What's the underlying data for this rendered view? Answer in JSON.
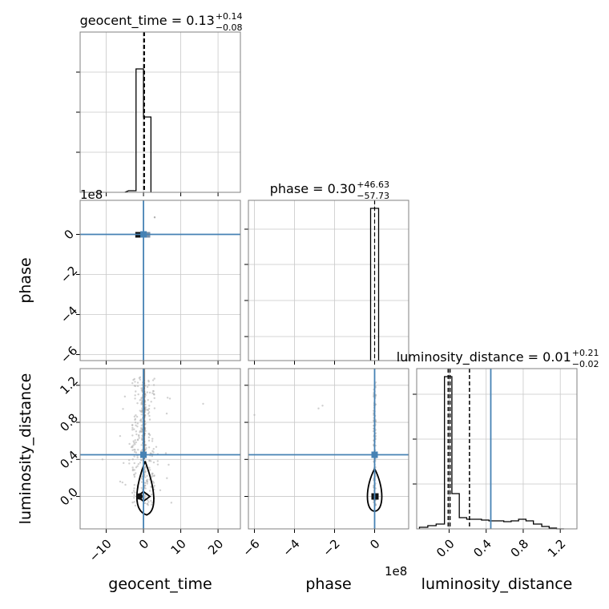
{
  "chart_data": {
    "type": "corner",
    "parameters": [
      "geocent_time",
      "phase",
      "luminosity_distance"
    ],
    "axis_labels": {
      "x": [
        "geocent_time",
        "phase",
        "luminosity_distance"
      ],
      "y": [
        "phase",
        "luminosity_distance"
      ]
    },
    "offset_text": {
      "panel_1_0_y": "1e8",
      "panel_2_1_x": "1e8"
    },
    "titles": [
      {
        "param": "geocent_time",
        "value": "0.13",
        "plus": "+0.14",
        "minus": "−0.08"
      },
      {
        "param": "phase",
        "value": "0.30",
        "plus": "+46.63",
        "minus": "−57.73"
      },
      {
        "param": "luminosity_distance",
        "value": "0.01",
        "plus": "+0.21",
        "minus": "−0.02"
      }
    ],
    "truths": {
      "geocent_time": 0.0,
      "phase": 0.0,
      "luminosity_distance": 0.45
    },
    "truth_color": "#4682b4",
    "axis_ranges": {
      "geocent_time": [
        -17,
        26
      ],
      "phase_scaled_1e8": [
        -6.3,
        1.7
      ],
      "luminosity_distance": [
        -0.35,
        1.38
      ]
    },
    "ticks": {
      "geocent_time": [
        "−10",
        "0",
        "10",
        "20"
      ],
      "phase_scaled_1e8": [
        "−6",
        "−4",
        "−2",
        "0"
      ],
      "luminosity_distance": [
        "0.0",
        "0.4",
        "0.8",
        "1.2"
      ]
    },
    "tick_values": {
      "geocent_time": [
        -10,
        0,
        10,
        20
      ],
      "phase_scaled_1e8": [
        -6,
        -4,
        -2,
        0
      ],
      "luminosity_distance": [
        0.0,
        0.4,
        0.8,
        1.2
      ]
    },
    "histograms": {
      "geocent_time": {
        "bins": [
          -4,
          -2,
          0,
          2
        ],
        "heights": [
          0.01,
          0.77,
          0.47,
          0.0
        ]
      },
      "phase_scaled_1e8": {
        "bins": [
          -0.2,
          0.0,
          0.2
        ],
        "heights": [
          0.95,
          0.0
        ]
      },
      "luminosity_distance": {
        "edges": [
          -0.32,
          -0.23,
          -0.14,
          -0.05,
          0.03,
          0.11,
          0.19,
          0.27,
          0.35,
          0.43,
          0.51,
          0.59,
          0.67,
          0.75,
          0.83,
          0.91,
          1.0,
          1.08,
          1.16,
          1.24
        ],
        "heights": [
          0.01,
          0.02,
          0.03,
          0.95,
          0.22,
          0.07,
          0.06,
          0.06,
          0.055,
          0.05,
          0.05,
          0.045,
          0.05,
          0.06,
          0.05,
          0.03,
          0.015,
          0.005,
          0.0
        ]
      }
    },
    "quantile_lines": {
      "geocent_time": [
        0.05,
        0.13,
        0.27
      ],
      "phase_scaled_1e8": [
        0.0
      ],
      "luminosity_distance": [
        -0.01,
        0.01,
        0.22
      ]
    },
    "grid": true
  }
}
